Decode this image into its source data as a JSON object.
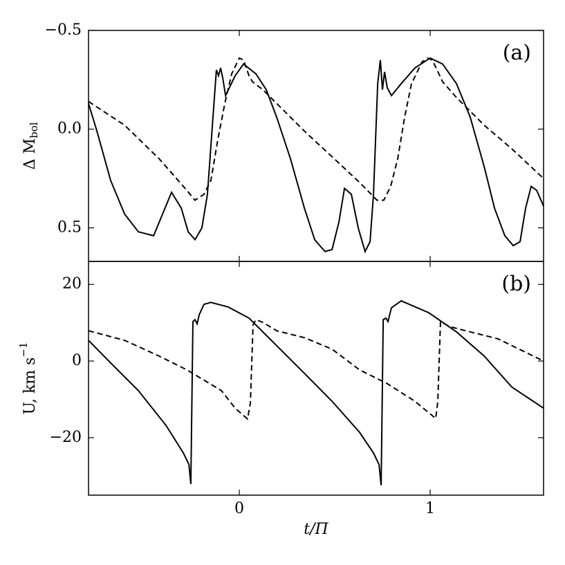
{
  "chart_data": [
    {
      "type": "line",
      "annotation": "(a)",
      "ylabel": {
        "base": "Δ M",
        "sub": "bol"
      },
      "xlim": [
        -0.79,
        1.594
      ],
      "xticks": [
        0,
        1
      ],
      "xtick_labels": false,
      "ylim": [
        0.67,
        -0.5
      ],
      "yticks": [
        {
          "value": -0.5,
          "label": "−0.5"
        },
        {
          "value": 0,
          "label": "0.0"
        },
        0.5
      ],
      "series": [
        {
          "color": "#000000",
          "dash": "solid",
          "x": [
            -0.79,
            -0.746,
            -0.674,
            -0.601,
            -0.529,
            -0.449,
            -0.402,
            -0.355,
            -0.304,
            -0.268,
            -0.232,
            -0.196,
            -0.167,
            -0.141,
            -0.12,
            -0.109,
            -0.098,
            -0.087,
            -0.072,
            -0.022,
            0.022,
            0.087,
            0.141,
            0.196,
            0.268,
            0.341,
            0.395,
            0.449,
            0.486,
            0.522,
            0.551,
            0.587,
            0.623,
            0.659,
            0.685,
            0.703,
            0.725,
            0.739,
            0.75,
            0.761,
            0.775,
            0.797,
            0.848,
            0.92,
            1.0,
            1.065,
            1.138,
            1.21,
            1.283,
            1.337,
            1.391,
            1.435,
            1.471,
            1.5,
            1.529,
            1.558,
            1.594
          ],
          "values": [
            -0.13,
            0.01,
            0.26,
            0.43,
            0.52,
            0.54,
            0.43,
            0.32,
            0.4,
            0.52,
            0.56,
            0.5,
            0.33,
            -0.02,
            -0.3,
            -0.27,
            -0.31,
            -0.26,
            -0.17,
            -0.27,
            -0.33,
            -0.28,
            -0.2,
            -0.06,
            0.15,
            0.4,
            0.56,
            0.62,
            0.61,
            0.47,
            0.3,
            0.33,
            0.5,
            0.62,
            0.57,
            0.33,
            -0.23,
            -0.35,
            -0.2,
            -0.29,
            -0.21,
            -0.17,
            -0.23,
            -0.31,
            -0.36,
            -0.33,
            -0.23,
            -0.06,
            0.19,
            0.4,
            0.54,
            0.59,
            0.57,
            0.4,
            0.29,
            0.31,
            0.39
          ]
        },
        {
          "color": "#000000",
          "dash": "dashed",
          "x": [
            -0.79,
            -0.601,
            -0.42,
            -0.275,
            -0.232,
            -0.185,
            -0.149,
            -0.112,
            -0.076,
            -0.04,
            0.0,
            0.022,
            0.051,
            0.069,
            0.123,
            0.196,
            0.341,
            0.486,
            0.63,
            0.721,
            0.757,
            0.793,
            0.83,
            0.866,
            0.902,
            0.957,
            0.986,
            1.011,
            1.036,
            1.065,
            1.138,
            1.283,
            1.428,
            1.594
          ],
          "values": [
            -0.14,
            -0.02,
            0.15,
            0.31,
            0.36,
            0.33,
            0.26,
            0.05,
            -0.13,
            -0.28,
            -0.36,
            -0.35,
            -0.27,
            -0.24,
            -0.2,
            -0.13,
            0.01,
            0.14,
            0.27,
            0.36,
            0.36,
            0.29,
            0.15,
            -0.06,
            -0.23,
            -0.34,
            -0.36,
            -0.35,
            -0.3,
            -0.24,
            -0.16,
            -0.02,
            0.1,
            0.25
          ]
        }
      ]
    },
    {
      "type": "line",
      "annotation": "(b)",
      "ylabel": {
        "base": "U,  km s",
        "sup": "−1"
      },
      "xlabel": "t/Π",
      "xlim": [
        -0.79,
        1.594
      ],
      "xticks": [
        0,
        1
      ],
      "xtick_labels": true,
      "ylim": [
        -35,
        26
      ],
      "yticks": [
        {
          "value": -20,
          "label": "−20"
        },
        0,
        20
      ],
      "series": [
        {
          "color": "#000000",
          "dash": "solid",
          "x": [
            -0.79,
            -0.674,
            -0.529,
            -0.384,
            -0.293,
            -0.264,
            -0.254,
            -0.243,
            -0.232,
            -0.221,
            -0.21,
            -0.185,
            -0.149,
            -0.058,
            0.051,
            0.196,
            0.341,
            0.486,
            0.63,
            0.703,
            0.732,
            0.743,
            0.754,
            0.768,
            0.779,
            0.797,
            0.848,
            0.993,
            1.138,
            1.283,
            1.428,
            1.594
          ],
          "values": [
            5.4,
            -0.5,
            -7.7,
            -16.8,
            -24.0,
            -27.0,
            -32.1,
            10.3,
            10.8,
            9.7,
            12.1,
            14.8,
            15.3,
            14.1,
            11.2,
            4.0,
            -3.2,
            -10.5,
            -18.6,
            -24.0,
            -27.0,
            -32.4,
            10.8,
            11.2,
            10.3,
            13.9,
            15.7,
            12.6,
            7.6,
            1.3,
            -6.8,
            -12.3
          ]
        },
        {
          "color": "#000000",
          "dash": "dashed",
          "x": [
            -0.79,
            -0.601,
            -0.42,
            -0.275,
            -0.094,
            -0.022,
            0.043,
            0.058,
            0.072,
            0.087,
            0.123,
            0.196,
            0.341,
            0.486,
            0.63,
            0.775,
            0.92,
            1.029,
            1.04,
            1.054,
            1.101,
            1.21,
            1.355,
            1.594
          ],
          "values": [
            7.9,
            5.4,
            1.3,
            -2.3,
            -7.7,
            -12.3,
            -15.1,
            -11.0,
            9.4,
            10.8,
            10.1,
            7.9,
            6.1,
            3.1,
            -2.3,
            -5.9,
            -10.5,
            -15.0,
            -10.5,
            10.3,
            9.0,
            7.6,
            5.8,
            0.0
          ]
        }
      ]
    }
  ]
}
